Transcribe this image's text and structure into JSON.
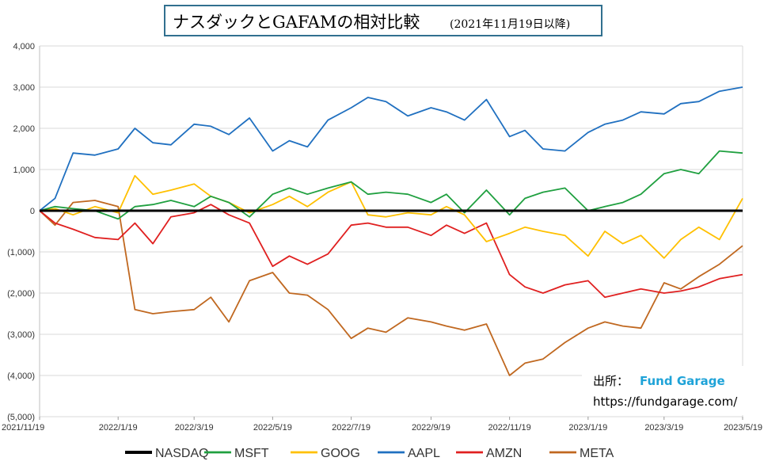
{
  "title": {
    "main": "ナスダックとGAFAMの相対比較",
    "sub": "(2021年11月19日以降)"
  },
  "source": {
    "label": "出所：",
    "brand": "Fund Garage",
    "url": "https://fundgarage.com/"
  },
  "chart_data": {
    "type": "line",
    "x_tick_labels": [
      "2021/11/19",
      "2022/1/19",
      "2022/3/19",
      "2022/5/19",
      "2022/7/19",
      "2022/9/19",
      "2022/11/19",
      "2023/1/19",
      "2023/3/19",
      "2023/5/19"
    ],
    "y_tick_labels": [
      "4,000",
      "3,000",
      "2,000",
      "1,000",
      "0",
      "(1,000)",
      "(2,000)",
      "(3,000)",
      "(4,000)",
      "(5,000)"
    ],
    "ylim": [
      -5000,
      4000
    ],
    "grid": true,
    "legend_position": "bottom",
    "x_dates": [
      "2021/11/19",
      "2021/12/1",
      "2021/12/15",
      "2022/1/1",
      "2022/1/19",
      "2022/2/1",
      "2022/2/15",
      "2022/3/1",
      "2022/3/19",
      "2022/4/1",
      "2022/4/15",
      "2022/5/1",
      "2022/5/19",
      "2022/6/1",
      "2022/6/15",
      "2022/7/1",
      "2022/7/19",
      "2022/8/1",
      "2022/8/15",
      "2022/9/1",
      "2022/9/19",
      "2022/10/1",
      "2022/10/15",
      "2022/11/1",
      "2022/11/19",
      "2022/12/1",
      "2022/12/15",
      "2023/1/1",
      "2023/1/19",
      "2023/2/1",
      "2023/2/15",
      "2023/3/1",
      "2023/3/19",
      "2023/4/1",
      "2023/4/15",
      "2023/5/1",
      "2023/5/19"
    ],
    "series": [
      {
        "name": "NASDAQ",
        "color": "#000000",
        "width": 3,
        "values": [
          0,
          0,
          0,
          0,
          0,
          0,
          0,
          0,
          0,
          0,
          0,
          0,
          0,
          0,
          0,
          0,
          0,
          0,
          0,
          0,
          0,
          0,
          0,
          0,
          0,
          0,
          0,
          0,
          0,
          0,
          0,
          0,
          0,
          0,
          0,
          0,
          0
        ]
      },
      {
        "name": "MSFT",
        "color": "#20a040",
        "width": 1.8,
        "values": [
          0,
          100,
          50,
          0,
          -200,
          100,
          150,
          250,
          100,
          350,
          200,
          -150,
          400,
          550,
          400,
          550,
          700,
          400,
          450,
          400,
          200,
          400,
          -50,
          500,
          -100,
          300,
          450,
          550,
          0,
          100,
          200,
          400,
          900,
          1000,
          900,
          1450,
          1400
        ]
      },
      {
        "name": "GOOG",
        "color": "#ffc000",
        "width": 1.8,
        "values": [
          0,
          50,
          -100,
          100,
          -50,
          850,
          400,
          500,
          650,
          350,
          200,
          -50,
          150,
          350,
          100,
          450,
          700,
          -100,
          -150,
          -50,
          -100,
          100,
          -100,
          -750,
          -550,
          -400,
          -500,
          -600,
          -1100,
          -500,
          -800,
          -600,
          -1150,
          -700,
          -400,
          -700,
          300
        ]
      },
      {
        "name": "AAPL",
        "color": "#2070c0",
        "width": 1.8,
        "values": [
          0,
          300,
          1400,
          1350,
          1500,
          2000,
          1650,
          1600,
          2100,
          2050,
          1850,
          2250,
          1450,
          1700,
          1550,
          2200,
          2500,
          2750,
          2650,
          2300,
          2500,
          2400,
          2200,
          2700,
          1800,
          1950,
          1500,
          1450,
          1900,
          2100,
          2200,
          2400,
          2350,
          2600,
          2650,
          2900,
          3000
        ]
      },
      {
        "name": "AMZN",
        "color": "#e02020",
        "width": 1.8,
        "values": [
          0,
          -300,
          -450,
          -650,
          -700,
          -300,
          -800,
          -150,
          -50,
          150,
          -100,
          -300,
          -1350,
          -1100,
          -1300,
          -1050,
          -350,
          -300,
          -400,
          -400,
          -600,
          -350,
          -550,
          -300,
          -1550,
          -1850,
          -2000,
          -1800,
          -1700,
          -2100,
          -2000,
          -1900,
          -2000,
          -1950,
          -1850,
          -1650,
          -1550
        ]
      },
      {
        "name": "META",
        "color": "#c06820",
        "width": 1.8,
        "values": [
          0,
          -350,
          200,
          250,
          100,
          -2400,
          -2500,
          -2450,
          -2400,
          -2100,
          -2700,
          -1700,
          -1500,
          -2000,
          -2050,
          -2400,
          -3100,
          -2850,
          -2950,
          -2600,
          -2700,
          -2800,
          -2900,
          -2750,
          -4000,
          -3700,
          -3600,
          -3200,
          -2850,
          -2700,
          -2800,
          -2850,
          -1750,
          -1900,
          -1600,
          -1300,
          -850
        ]
      }
    ]
  }
}
